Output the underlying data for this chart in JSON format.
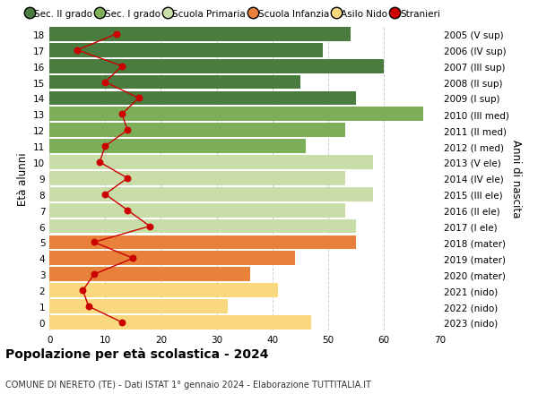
{
  "ages": [
    0,
    1,
    2,
    3,
    4,
    5,
    6,
    7,
    8,
    9,
    10,
    11,
    12,
    13,
    14,
    15,
    16,
    17,
    18
  ],
  "years_labels": [
    "2023 (nido)",
    "2022 (nido)",
    "2021 (nido)",
    "2020 (mater)",
    "2019 (mater)",
    "2018 (mater)",
    "2017 (I ele)",
    "2016 (II ele)",
    "2015 (III ele)",
    "2014 (IV ele)",
    "2013 (V ele)",
    "2012 (I med)",
    "2011 (II med)",
    "2010 (III med)",
    "2009 (I sup)",
    "2008 (II sup)",
    "2007 (III sup)",
    "2006 (IV sup)",
    "2005 (V sup)"
  ],
  "bar_values": [
    47,
    32,
    41,
    36,
    44,
    55,
    55,
    53,
    58,
    53,
    58,
    46,
    53,
    67,
    55,
    45,
    60,
    49,
    54
  ],
  "bar_colors": [
    "#FAD97E",
    "#FAD97E",
    "#FAD97E",
    "#E8813A",
    "#E8813A",
    "#E8813A",
    "#C8DDA8",
    "#C8DDA8",
    "#C8DDA8",
    "#C8DDA8",
    "#C8DDA8",
    "#7DAF5A",
    "#7DAF5A",
    "#7DAF5A",
    "#4A7C3F",
    "#4A7C3F",
    "#4A7C3F",
    "#4A7C3F",
    "#4A7C3F"
  ],
  "stranieri_values": [
    13,
    7,
    6,
    8,
    15,
    8,
    18,
    14,
    10,
    14,
    9,
    10,
    14,
    13,
    16,
    10,
    13,
    5,
    12
  ],
  "legend_labels": [
    "Sec. II grado",
    "Sec. I grado",
    "Scuola Primaria",
    "Scuola Infanzia",
    "Asilo Nido",
    "Stranieri"
  ],
  "legend_colors": [
    "#4A7C3F",
    "#7DAF5A",
    "#C8DDA8",
    "#E8813A",
    "#FAD97E",
    "#CC0000"
  ],
  "ylabel": "Età alunni",
  "right_label": "Anni di nascita",
  "title": "Popolazione per età scolastica - 2024",
  "subtitle": "COMUNE DI NERETO (TE) - Dati ISTAT 1° gennaio 2024 - Elaborazione TUTTITALIA.IT",
  "xlim": [
    0,
    70
  ],
  "xticks": [
    0,
    10,
    20,
    30,
    40,
    50,
    60,
    70
  ],
  "background_color": "#FFFFFF",
  "grid_color": "#CCCCCC",
  "stranieri_color": "#CC0000"
}
